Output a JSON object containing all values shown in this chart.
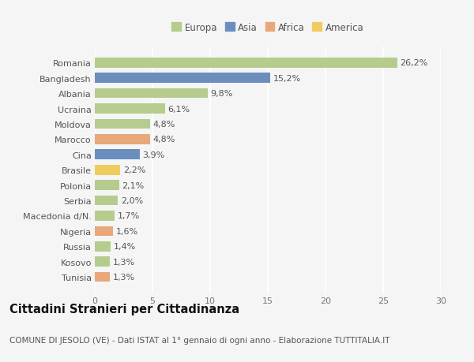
{
  "categories": [
    "Romania",
    "Bangladesh",
    "Albania",
    "Ucraina",
    "Moldova",
    "Marocco",
    "Cina",
    "Brasile",
    "Polonia",
    "Serbia",
    "Macedonia d/N.",
    "Nigeria",
    "Russia",
    "Kosovo",
    "Tunisia"
  ],
  "values": [
    26.2,
    15.2,
    9.8,
    6.1,
    4.8,
    4.8,
    3.9,
    2.2,
    2.1,
    2.0,
    1.7,
    1.6,
    1.4,
    1.3,
    1.3
  ],
  "labels": [
    "26,2%",
    "15,2%",
    "9,8%",
    "6,1%",
    "4,8%",
    "4,8%",
    "3,9%",
    "2,2%",
    "2,1%",
    "2,0%",
    "1,7%",
    "1,6%",
    "1,4%",
    "1,3%",
    "1,3%"
  ],
  "colors": [
    "#b5cc8e",
    "#6b8ebf",
    "#b5cc8e",
    "#b5cc8e",
    "#b5cc8e",
    "#e8a87a",
    "#6b8ebf",
    "#f0cc60",
    "#b5cc8e",
    "#b5cc8e",
    "#b5cc8e",
    "#e8a87a",
    "#b5cc8e",
    "#b5cc8e",
    "#e8a87a"
  ],
  "legend_labels": [
    "Europa",
    "Asia",
    "Africa",
    "America"
  ],
  "legend_colors": [
    "#b5cc8e",
    "#6b8ebf",
    "#e8a87a",
    "#f0cc60"
  ],
  "title": "Cittadini Stranieri per Cittadinanza",
  "subtitle": "COMUNE DI JESOLO (VE) - Dati ISTAT al 1° gennaio di ogni anno - Elaborazione TUTTITALIA.IT",
  "xlim": [
    0,
    30
  ],
  "xticks": [
    0,
    5,
    10,
    15,
    20,
    25,
    30
  ],
  "background_color": "#f5f5f5",
  "grid_color": "#ffffff",
  "bar_height": 0.65,
  "label_fontsize": 8,
  "tick_fontsize": 8,
  "ytick_fontsize": 8,
  "title_fontsize": 10.5,
  "subtitle_fontsize": 7.5
}
